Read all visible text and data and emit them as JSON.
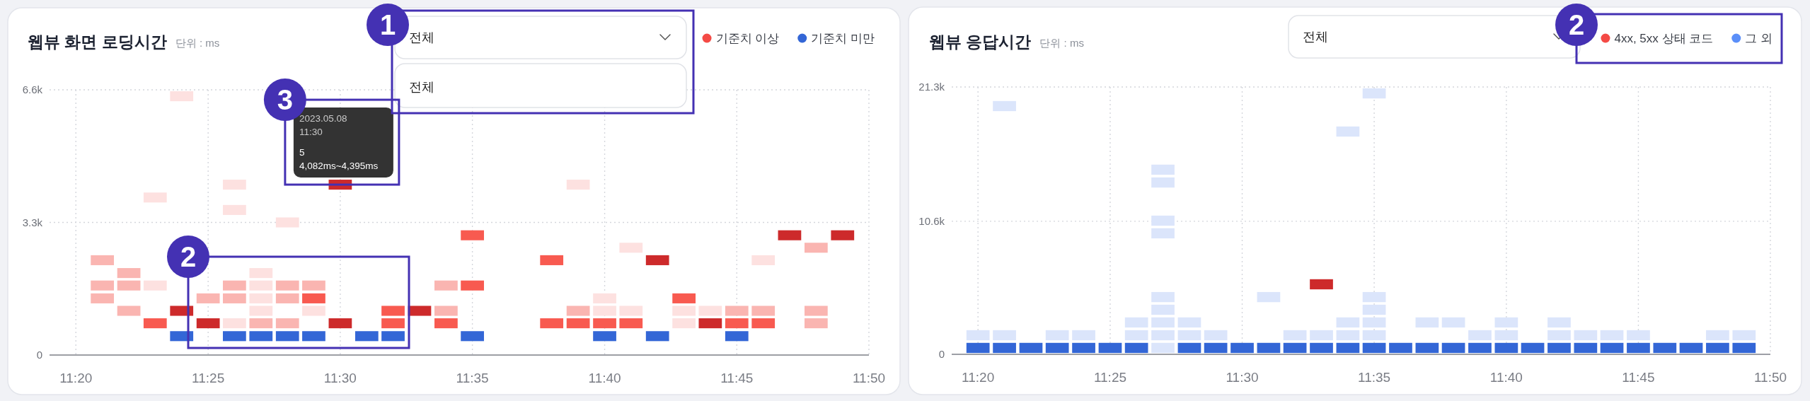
{
  "chart_data": [
    {
      "type": "scatter",
      "title": "웹뷰 화면 로딩시간",
      "subtitle": "단위 : ms",
      "marker": "square",
      "grid": true,
      "legend": "top right",
      "xlim": [
        11.3167,
        11.8333
      ],
      "xticks": [
        {
          "value": 11.3333,
          "label": "11:20"
        },
        {
          "value": 11.4167,
          "label": "11:25"
        },
        {
          "value": 11.5,
          "label": "11:30"
        },
        {
          "value": 11.5833,
          "label": "11:35"
        },
        {
          "value": 11.6667,
          "label": "11:40"
        },
        {
          "value": 11.75,
          "label": "11:45"
        },
        {
          "value": 11.8333,
          "label": "11:50"
        }
      ],
      "ylim": [
        0,
        6600
      ],
      "yticks": [
        0,
        {
          "value": 3300,
          "label": "3.3k"
        },
        {
          "value": 6600,
          "label": "6.6k"
        }
      ],
      "series": [
        {
          "name": "기준치 이상",
          "color": "#f44a45",
          "x": [
            11.35,
            11.35,
            11.35,
            11.3667,
            11.3667,
            11.3667,
            11.3833,
            11.3833,
            11.3833,
            11.4,
            11.4,
            11.4167,
            11.4167,
            11.4333,
            11.4333,
            11.4333,
            11.4333,
            11.4333,
            11.45,
            11.45,
            11.45,
            11.45,
            11.45,
            11.4667,
            11.4667,
            11.4667,
            11.4667,
            11.4833,
            11.4833,
            11.4833,
            11.5,
            11.5,
            11.5333,
            11.5333,
            11.55,
            11.5667,
            11.5667,
            11.5667,
            11.5833,
            11.5833,
            11.6333,
            11.6333,
            11.65,
            11.65,
            11.65,
            11.6667,
            11.6667,
            11.6667,
            11.6833,
            11.6833,
            11.6833,
            11.7,
            11.7167,
            11.7167,
            11.7167,
            11.7333,
            11.7333,
            11.75,
            11.75,
            11.7667,
            11.7667,
            11.7667,
            11.7833,
            11.8,
            11.8,
            11.8,
            11.8167
          ],
          "values": [
            2360,
            1730,
            1410,
            2040,
            1730,
            1100,
            3920,
            1730,
            790,
            6440,
            1100,
            1410,
            790,
            4240,
            3610,
            1730,
            1410,
            790,
            2040,
            1730,
            1410,
            1100,
            790,
            3300,
            1730,
            1410,
            790,
            1730,
            1410,
            1100,
            4240,
            790,
            1100,
            790,
            1100,
            1730,
            1100,
            790,
            2980,
            1730,
            2360,
            790,
            4240,
            1100,
            790,
            1410,
            1100,
            790,
            2670,
            1100,
            790,
            2360,
            1410,
            1100,
            790,
            1100,
            790,
            1100,
            790,
            2360,
            1100,
            790,
            2980,
            2670,
            1100,
            790,
            2980
          ],
          "colors": [
            "#fab5b1",
            "#fab5b1",
            "#fab5b1",
            "#fab5b1",
            "#fab5b1",
            "#fab5b1",
            "#fde1e0",
            "#fde1e0",
            "#f85a50",
            "#fde1e0",
            "#cd2a2b",
            "#fab5b1",
            "#cd2a2b",
            "#fde1e0",
            "#fde1e0",
            "#fab5b1",
            "#fab5b1",
            "#fde1e0",
            "#fde1e0",
            "#fde1e0",
            "#fde1e0",
            "#fde1e0",
            "#fab5b1",
            "#fde1e0",
            "#fab5b1",
            "#fab5b1",
            "#fab5b1",
            "#fab5b1",
            "#f85a50",
            "#fde1e0",
            "#cd2a2b",
            "#cd2a2b",
            "#f85a50",
            "#f85a50",
            "#cd2a2b",
            "#fab5b1",
            "#fab5b1",
            "#f85a50",
            "#f85a50",
            "#f85a50",
            "#f85a50",
            "#f85a50",
            "#fde1e0",
            "#fab5b1",
            "#f85a50",
            "#fde1e0",
            "#fde1e0",
            "#f85a50",
            "#fde1e0",
            "#fde1e0",
            "#f85a50",
            "#cd2a2b",
            "#f85a50",
            "#fde1e0",
            "#fde1e0",
            "#fde1e0",
            "#cd2a2b",
            "#fab5b1",
            "#f85a50",
            "#fde1e0",
            "#fab5b1",
            "#f85a50",
            "#cd2a2b",
            "#fab5b1",
            "#fab5b1",
            "#fab5b1",
            "#cd2a2b"
          ]
        },
        {
          "name": "기준치 미만",
          "color": "#3366d6",
          "x": [
            11.4,
            11.4333,
            11.45,
            11.4667,
            11.4833,
            11.5167,
            11.5333,
            11.5833,
            11.6667,
            11.7,
            11.75
          ],
          "values": [
            470,
            470,
            470,
            470,
            470,
            470,
            470,
            470,
            470,
            470,
            470
          ],
          "colors": [
            "#3366d6",
            "#3366d6",
            "#3366d6",
            "#3366d6",
            "#3366d6",
            "#3366d6",
            "#3366d6",
            "#3366d6",
            "#3366d6",
            "#3366d6",
            "#3366d6"
          ]
        }
      ],
      "annotations": [
        "전체",
        "전체",
        "1",
        "2",
        "3",
        {
          "text": "2023.05.08\n11:30\n5\n4,082ms~4,395ms",
          "x": 11.5,
          "y": 4240
        }
      ]
    },
    {
      "type": "scatter",
      "title": "웹뷰 응답시간",
      "subtitle": "단위 : ms",
      "marker": "square",
      "grid": true,
      "legend": "top right",
      "xlim": [
        11.3167,
        11.8333
      ],
      "xticks": [
        {
          "value": 11.3333,
          "label": "11:20"
        },
        {
          "value": 11.4167,
          "label": "11:25"
        },
        {
          "value": 11.5,
          "label": "11:30"
        },
        {
          "value": 11.5833,
          "label": "11:35"
        },
        {
          "value": 11.6667,
          "label": "11:40"
        },
        {
          "value": 11.75,
          "label": "11:45"
        },
        {
          "value": 11.8333,
          "label": "11:50"
        }
      ],
      "ylim": [
        0,
        21300
      ],
      "yticks": [
        0,
        {
          "value": 10600,
          "label": "10.6k"
        },
        {
          "value": 21300,
          "label": "21.3k"
        }
      ],
      "series": [
        {
          "name": "4xx, 5xx 상태 코드",
          "color": "#f44a45",
          "x": [
            11.55
          ],
          "values": [
            5580
          ],
          "colors": [
            "#cd2a2b"
          ]
        },
        {
          "name": "그 외",
          "color": "#5b8ff9",
          "x": [
            11.3333,
            11.3333,
            11.35,
            11.35,
            11.35,
            11.3667,
            11.3833,
            11.3833,
            11.4,
            11.4,
            11.4167,
            11.4333,
            11.4333,
            11.4333,
            11.45,
            11.45,
            11.45,
            11.45,
            11.45,
            11.45,
            11.45,
            11.45,
            11.45,
            11.4667,
            11.4667,
            11.4667,
            11.4833,
            11.4833,
            11.5,
            11.5167,
            11.5167,
            11.5333,
            11.5333,
            11.55,
            11.55,
            11.5667,
            11.5667,
            11.5667,
            11.5667,
            11.5833,
            11.5833,
            11.5833,
            11.5833,
            11.5833,
            11.5833,
            11.6,
            11.6167,
            11.6167,
            11.6333,
            11.6333,
            11.65,
            11.65,
            11.6667,
            11.6667,
            11.6667,
            11.6833,
            11.7,
            11.7,
            11.7,
            11.7167,
            11.7167,
            11.7333,
            11.7333,
            11.75,
            11.75,
            11.7667,
            11.7833,
            11.8,
            11.8,
            11.8167,
            11.8167
          ],
          "values": [
            1520,
            510,
            19780,
            1520,
            510,
            510,
            1520,
            510,
            1520,
            510,
            510,
            2540,
            1520,
            510,
            14710,
            13690,
            10650,
            9640,
            4560,
            3550,
            2540,
            1520,
            510,
            2540,
            1520,
            510,
            1520,
            510,
            510,
            4560,
            510,
            1520,
            510,
            1520,
            510,
            17750,
            2540,
            1520,
            510,
            20790,
            4560,
            3550,
            2540,
            1520,
            510,
            510,
            2540,
            510,
            2540,
            510,
            1520,
            510,
            2540,
            1520,
            510,
            510,
            2540,
            1520,
            510,
            1520,
            510,
            1520,
            510,
            1520,
            510,
            510,
            510,
            1520,
            510,
            1520,
            510
          ],
          "colors": [
            "#dbe5fb",
            "#3366d6",
            "#dbe5fb",
            "#dbe5fb",
            "#3366d6",
            "#3366d6",
            "#dbe5fb",
            "#3366d6",
            "#dbe5fb",
            "#3366d6",
            "#3366d6",
            "#dbe5fb",
            "#dbe5fb",
            "#3366d6",
            "#dbe5fb",
            "#dbe5fb",
            "#dbe5fb",
            "#dbe5fb",
            "#dbe5fb",
            "#dbe5fb",
            "#dbe5fb",
            "#dbe5fb",
            "#dbe5fb",
            "#dbe5fb",
            "#dbe5fb",
            "#3366d6",
            "#dbe5fb",
            "#3366d6",
            "#3366d6",
            "#dbe5fb",
            "#3366d6",
            "#dbe5fb",
            "#3366d6",
            "#dbe5fb",
            "#3366d6",
            "#dbe5fb",
            "#dbe5fb",
            "#dbe5fb",
            "#3366d6",
            "#dbe5fb",
            "#dbe5fb",
            "#dbe5fb",
            "#dbe5fb",
            "#dbe5fb",
            "#3366d6",
            "#3366d6",
            "#dbe5fb",
            "#3366d6",
            "#dbe5fb",
            "#3366d6",
            "#dbe5fb",
            "#3366d6",
            "#dbe5fb",
            "#dbe5fb",
            "#3366d6",
            "#3366d6",
            "#dbe5fb",
            "#dbe5fb",
            "#3366d6",
            "#dbe5fb",
            "#3366d6",
            "#dbe5fb",
            "#3366d6",
            "#dbe5fb",
            "#3366d6",
            "#3366d6",
            "#3366d6",
            "#dbe5fb",
            "#3366d6",
            "#dbe5fb",
            "#3366d6"
          ]
        }
      ],
      "annotations": [
        "전체",
        "2"
      ]
    }
  ]
}
